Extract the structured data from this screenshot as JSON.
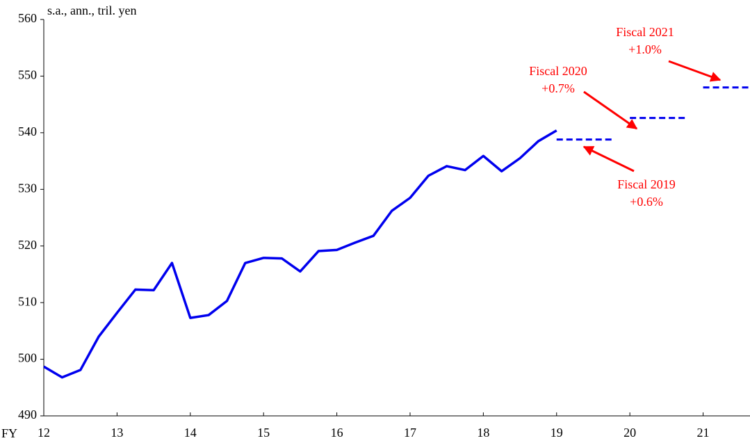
{
  "chart_data": {
    "type": "line",
    "y_label": "s.a., ann., tril. yen",
    "x_label": "FY",
    "xlim": [
      12,
      21.64
    ],
    "xticks": [
      12,
      13,
      14,
      15,
      16,
      17,
      18,
      19,
      20,
      21
    ],
    "ylim": [
      490,
      560
    ],
    "yticks": [
      490,
      500,
      510,
      520,
      530,
      540,
      550,
      560
    ],
    "grid": false,
    "series": [
      {
        "color": "#0000ee",
        "style": "solid",
        "x": [
          12,
          12.25,
          12.5,
          12.75,
          13,
          13.25,
          13.5,
          13.75,
          14,
          14.25,
          14.5,
          14.75,
          15,
          15.25,
          15.5,
          15.75,
          16,
          16.25,
          16.5,
          16.75,
          17,
          17.25,
          17.5,
          17.75,
          18,
          18.25,
          18.5,
          18.75,
          19
        ],
        "values": [
          498.7,
          496.8,
          498.1,
          504.0,
          508.2,
          512.3,
          512.2,
          517.0,
          507.3,
          507.8,
          510.3,
          517.0,
          517.9,
          517.8,
          515.5,
          519.1,
          519.3,
          520.6,
          521.8,
          526.2,
          528.5,
          532.4,
          534.1,
          533.4,
          535.9,
          533.2,
          535.5,
          538.5,
          540.4
        ]
      },
      {
        "color": "#0000ee",
        "style": "dashed",
        "x": [
          19,
          19.75
        ],
        "values": [
          538.8,
          538.8
        ]
      },
      {
        "color": "#0000ee",
        "style": "dashed",
        "x": [
          20,
          20.75
        ],
        "values": [
          542.6,
          542.6
        ]
      },
      {
        "color": "#0000ee",
        "style": "dashed",
        "x": [
          21,
          21.64
        ],
        "values": [
          548.0,
          548.0
        ]
      }
    ],
    "annotations": [
      {
        "lines": [
          "Fiscal 2019",
          "+0.6%"
        ]
      },
      {
        "lines": [
          "Fiscal 2020",
          "+0.7%"
        ]
      },
      {
        "lines": [
          "Fiscal 2021",
          "+1.0%"
        ]
      }
    ]
  }
}
